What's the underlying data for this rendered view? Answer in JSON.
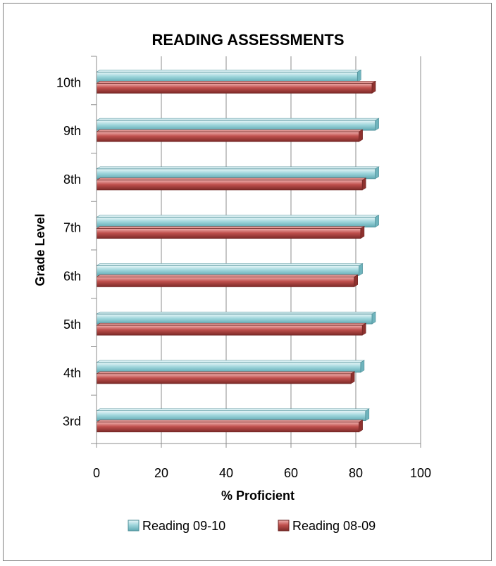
{
  "chart_data": {
    "type": "bar",
    "orientation": "horizontal",
    "title": "READING ASSESSMENTS",
    "xlabel": "% Proficient",
    "ylabel": "Grade Level",
    "xlim": [
      0,
      100
    ],
    "x_ticks": [
      "0",
      "20",
      "40",
      "60",
      "80",
      "100"
    ],
    "categories": [
      "3rd",
      "4th",
      "5th",
      "6th",
      "7th",
      "8th",
      "9th",
      "10th"
    ],
    "series": [
      {
        "name": "Reading 09-10",
        "color": "#9fd6dc",
        "values": [
          83,
          81.5,
          85,
          81,
          86,
          86,
          86,
          80.5
        ]
      },
      {
        "name": "Reading 08-09",
        "color": "#c0504d",
        "values": [
          81,
          78.5,
          82,
          79.5,
          81.5,
          82,
          81,
          85
        ]
      }
    ],
    "grid": "vertical",
    "legend": "bottom"
  }
}
